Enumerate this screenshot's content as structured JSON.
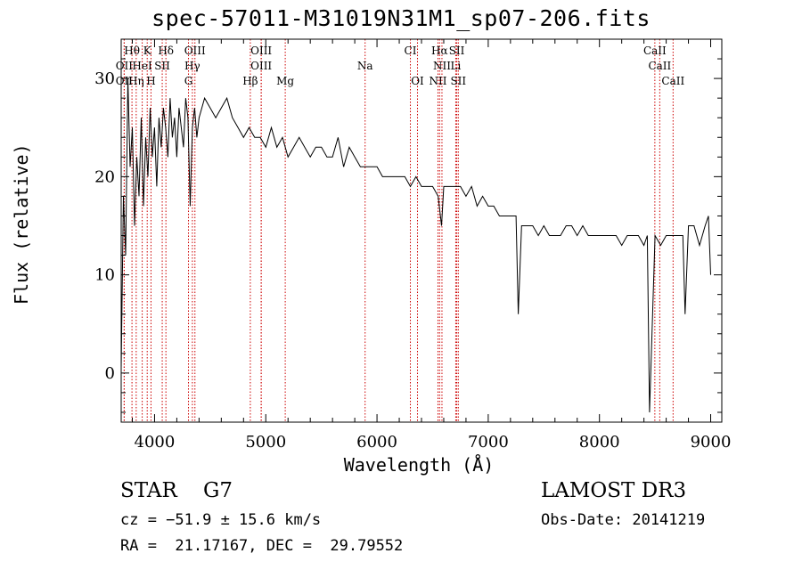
{
  "chart_data": {
    "type": "line",
    "title": "spec-57011-M31019N31M1_sp07-206.fits",
    "xlabel": "Wavelength (Å)",
    "ylabel": "Flux (relative)",
    "xlim": [
      3700,
      9100
    ],
    "ylim": [
      -5,
      34
    ],
    "xticks": [
      4000,
      5000,
      6000,
      7000,
      8000,
      9000
    ],
    "yticks": [
      0,
      10,
      20,
      30
    ],
    "series": [
      {
        "name": "spectrum",
        "x": [
          3700,
          3720,
          3740,
          3760,
          3780,
          3800,
          3820,
          3840,
          3860,
          3880,
          3900,
          3920,
          3940,
          3960,
          3980,
          4000,
          4020,
          4040,
          4060,
          4080,
          4100,
          4120,
          4140,
          4160,
          4180,
          4200,
          4220,
          4240,
          4260,
          4280,
          4300,
          4320,
          4340,
          4360,
          4380,
          4400,
          4450,
          4500,
          4550,
          4600,
          4650,
          4700,
          4750,
          4800,
          4850,
          4900,
          4950,
          5000,
          5050,
          5100,
          5150,
          5200,
          5250,
          5300,
          5350,
          5400,
          5450,
          5500,
          5550,
          5600,
          5650,
          5700,
          5750,
          5800,
          5850,
          5900,
          5950,
          6000,
          6050,
          6100,
          6150,
          6200,
          6250,
          6300,
          6350,
          6400,
          6450,
          6500,
          6550,
          6580,
          6600,
          6650,
          6700,
          6750,
          6800,
          6850,
          6900,
          6950,
          7000,
          7050,
          7100,
          7150,
          7200,
          7250,
          7270,
          7300,
          7350,
          7400,
          7450,
          7500,
          7550,
          7600,
          7650,
          7700,
          7750,
          7800,
          7850,
          7900,
          7950,
          8000,
          8050,
          8100,
          8150,
          8200,
          8250,
          8300,
          8350,
          8400,
          8430,
          8450,
          8500,
          8550,
          8600,
          8650,
          8700,
          8750,
          8770,
          8800,
          8850,
          8900,
          8950,
          8980,
          9000
        ],
        "y": [
          0.5,
          18,
          12,
          30,
          21,
          25,
          15,
          22,
          18,
          26,
          17,
          24,
          20,
          27,
          22,
          25,
          19,
          26,
          23,
          27,
          25,
          22,
          28,
          24,
          26,
          22,
          27,
          25,
          23,
          28,
          26,
          17,
          25,
          27,
          24,
          26,
          28,
          27,
          26,
          27,
          28,
          26,
          25,
          24,
          25,
          24,
          24,
          23,
          25,
          23,
          24,
          22,
          23,
          24,
          23,
          22,
          23,
          23,
          22,
          22,
          24,
          21,
          23,
          22,
          21,
          21,
          21,
          21,
          20,
          20,
          20,
          20,
          20,
          19,
          20,
          19,
          19,
          19,
          18,
          15,
          19,
          19,
          19,
          19,
          18,
          19,
          17,
          18,
          17,
          17,
          16,
          16,
          16,
          16,
          6,
          15,
          15,
          15,
          14,
          15,
          14,
          14,
          14,
          15,
          15,
          14,
          15,
          14,
          14,
          14,
          14,
          14,
          14,
          13,
          14,
          14,
          14,
          13,
          14,
          -4,
          14,
          13,
          14,
          14,
          14,
          14,
          6,
          15,
          15,
          13,
          15,
          16,
          10
        ]
      }
    ],
    "lines": [
      {
        "label": "Hθ",
        "x": 3797,
        "row": 1
      },
      {
        "label": "K",
        "x": 3934,
        "row": 1
      },
      {
        "label": "Hδ",
        "x": 4102,
        "row": 1
      },
      {
        "label": "OIII",
        "x": 4363,
        "row": 1
      },
      {
        "label": "OIII",
        "x": 4959,
        "row": 1
      },
      {
        "label": "CI",
        "x": 6300,
        "row": 1
      },
      {
        "label": "Hα",
        "x": 6563,
        "row": 1
      },
      {
        "label": "SII",
        "x": 6717,
        "row": 1
      },
      {
        "label": "CaII",
        "x": 8498,
        "row": 1
      },
      {
        "label": "OII",
        "x": 3727,
        "row": 2
      },
      {
        "label": "HeI",
        "x": 3889,
        "row": 2
      },
      {
        "label": "SII",
        "x": 4069,
        "row": 2
      },
      {
        "label": "Hγ",
        "x": 4340,
        "row": 2
      },
      {
        "label": "OIII",
        "x": 4959,
        "row": 2
      },
      {
        "label": "Na",
        "x": 5893,
        "row": 2
      },
      {
        "label": "NII",
        "x": 6584,
        "row": 2
      },
      {
        "label": "Li",
        "x": 6708,
        "row": 2
      },
      {
        "label": "CaII",
        "x": 8542,
        "row": 2
      },
      {
        "label": "OII",
        "x": 3727,
        "row": 3
      },
      {
        "label": "Hη",
        "x": 3835,
        "row": 3
      },
      {
        "label": "H",
        "x": 3968,
        "row": 3
      },
      {
        "label": "G",
        "x": 4305,
        "row": 3
      },
      {
        "label": "Hβ",
        "x": 4861,
        "row": 3
      },
      {
        "label": "Mg",
        "x": 5175,
        "row": 3
      },
      {
        "label": "OI",
        "x": 6364,
        "row": 3
      },
      {
        "label": "NII",
        "x": 6548,
        "row": 3
      },
      {
        "label": "SII",
        "x": 6731,
        "row": 3
      },
      {
        "label": "CaII",
        "x": 8662,
        "row": 3
      }
    ]
  },
  "info": {
    "object_class": "STAR    G7",
    "redshift": "cz = −51.9 ± 15.6 km/s",
    "coords": "RA =  21.17167, DEC =  29.79552",
    "survey": "LAMOST DR3",
    "obs_date": "Obs-Date: 20141219"
  },
  "colors": {
    "line_marker": "#cc0000",
    "spectrum": "#000000"
  }
}
